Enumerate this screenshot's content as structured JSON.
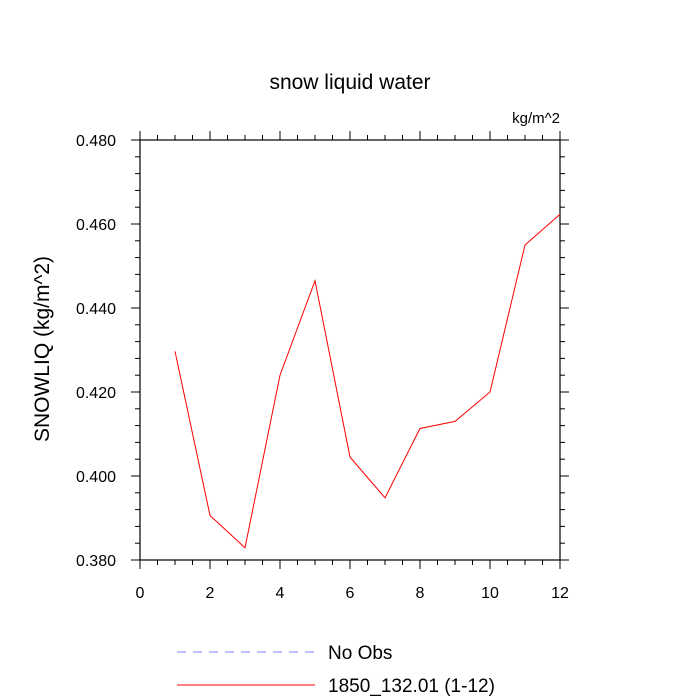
{
  "chart_data": {
    "type": "line",
    "title": "snow liquid water",
    "units": "kg/m^2",
    "xlabel": "",
    "ylabel": "SNOWLIQ  (kg/m^2)",
    "xlim": [
      0,
      12
    ],
    "ylim": [
      0.38,
      0.48
    ],
    "x_ticks": [
      0,
      2,
      4,
      6,
      8,
      10,
      12
    ],
    "x_tick_labels": [
      "0",
      "2",
      "4",
      "6",
      "8",
      "10",
      "12"
    ],
    "y_ticks": [
      0.38,
      0.4,
      0.42,
      0.44,
      0.46,
      0.48
    ],
    "y_tick_labels": [
      "0.380",
      "0.400",
      "0.420",
      "0.440",
      "0.460",
      "0.480"
    ],
    "grid": false,
    "series": [
      {
        "name": "1850_132.01 (1-12)",
        "color": "#ff0000",
        "dash": "solid",
        "x": [
          1,
          2,
          3,
          4,
          5,
          6,
          7,
          8,
          9,
          10,
          11,
          12
        ],
        "values": [
          0.4297,
          0.3906,
          0.3829,
          0.424,
          0.4465,
          0.4045,
          0.3948,
          0.4113,
          0.413,
          0.42,
          0.455,
          0.4623
        ]
      }
    ],
    "legend": [
      {
        "label": "No Obs",
        "color": "#8080ff",
        "dash": "dashed"
      },
      {
        "label": "1850_132.01 (1-12)",
        "color": "#ff0000",
        "dash": "solid"
      }
    ],
    "legend_position": "bottom"
  }
}
